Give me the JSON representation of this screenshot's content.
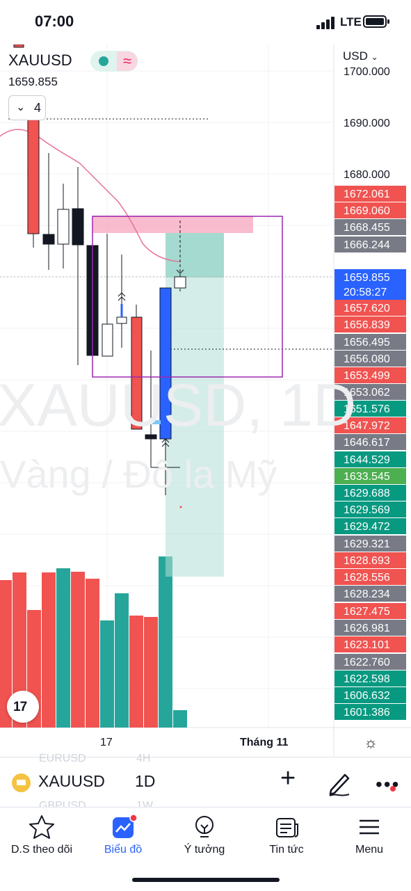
{
  "status_bar": {
    "time": "07:00",
    "network": "LTE"
  },
  "chart_header": {
    "symbol": "XAUUSD",
    "price": "1659.855",
    "indicator_count": "4",
    "currency": "USD"
  },
  "watermark": {
    "line1": "XAUUSD, 1D",
    "line2": "Vàng / Đô la Mỹ"
  },
  "price_axis": {
    "ticks": [
      "1700.000",
      "1690.000",
      "1680.000"
    ],
    "tags": [
      {
        "label": "1672.061",
        "color": "#f05350"
      },
      {
        "label": "1669.060",
        "color": "#f05350"
      },
      {
        "label": "1668.455",
        "color": "#787b86"
      },
      {
        "label": "1666.244",
        "color": "#787b86"
      },
      {
        "label": "1657.620",
        "color": "#f05350"
      },
      {
        "label": "1656.839",
        "color": "#f05350"
      },
      {
        "label": "1656.495",
        "color": "#787b86"
      },
      {
        "label": "1656.080",
        "color": "#787b86"
      },
      {
        "label": "1653.499",
        "color": "#f05350"
      },
      {
        "label": "1653.062",
        "color": "#787b86"
      },
      {
        "label": "1651.576",
        "color": "#089981"
      },
      {
        "label": "1647.972",
        "color": "#f05350"
      },
      {
        "label": "1646.617",
        "color": "#787b86"
      },
      {
        "label": "1644.529",
        "color": "#089981"
      },
      {
        "label": "1633.545",
        "color": "#4caf50"
      },
      {
        "label": "1629.688",
        "color": "#089981"
      },
      {
        "label": "1629.569",
        "color": "#089981"
      },
      {
        "label": "1629.472",
        "color": "#089981"
      },
      {
        "label": "1629.321",
        "color": "#787b86"
      },
      {
        "label": "1628.693",
        "color": "#f05350"
      },
      {
        "label": "1628.556",
        "color": "#f05350"
      },
      {
        "label": "1628.234",
        "color": "#787b86"
      },
      {
        "label": "1627.475",
        "color": "#f05350"
      },
      {
        "label": "1626.981",
        "color": "#787b86"
      },
      {
        "label": "1623.101",
        "color": "#f05350"
      },
      {
        "label": "1622.760",
        "color": "#787b86"
      },
      {
        "label": "1622.598",
        "color": "#089981"
      },
      {
        "label": "1606.632",
        "color": "#089981"
      },
      {
        "label": "1601.386",
        "color": "#089981"
      }
    ],
    "current_price": "1659.855",
    "countdown": "20:58:27"
  },
  "time_axis": {
    "labels": [
      "17",
      "Tháng 11"
    ]
  },
  "toolbar": {
    "symbol": "XAUUSD",
    "interval": "1D",
    "ghost_symbol_1": "EURUSD",
    "ghost_interval_1": "4H",
    "ghost_symbol_2": "GBPUSD",
    "ghost_interval_2": "1W"
  },
  "nav": {
    "items": [
      {
        "label": "D.S theo dõi",
        "icon": "star-icon"
      },
      {
        "label": "Biểu đồ",
        "icon": "chart-icon"
      },
      {
        "label": "Ý tưởng",
        "icon": "bulb-icon"
      },
      {
        "label": "Tin tức",
        "icon": "news-icon"
      },
      {
        "label": "Menu",
        "icon": "menu-icon"
      }
    ]
  },
  "colors": {
    "up": "#26a69a",
    "down": "#f05350",
    "accent": "#2962ff",
    "ma_line": "#e57399"
  }
}
